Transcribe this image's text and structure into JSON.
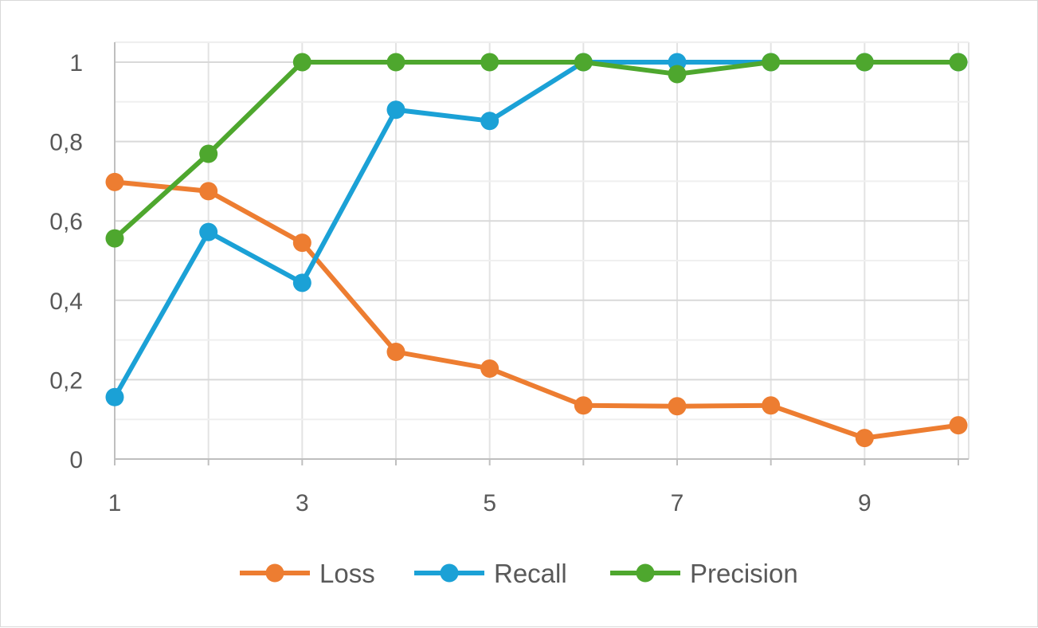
{
  "chart_data": {
    "type": "line",
    "title": "",
    "xlabel": "",
    "ylabel": "",
    "x": [
      1,
      2,
      3,
      4,
      5,
      6,
      7,
      8,
      9,
      10
    ],
    "x_tick_labels": [
      "1",
      "3",
      "5",
      "7",
      "9"
    ],
    "y_tick_labels": [
      "0",
      "0,2",
      "0,4",
      "0,6",
      "0,8",
      "1"
    ],
    "xlim": [
      1,
      10
    ],
    "ylim": [
      0,
      1
    ],
    "grid": true,
    "legend_position": "bottom",
    "series": [
      {
        "name": "Loss",
        "color": "#ED7D31",
        "values": [
          0.698,
          0.675,
          0.545,
          0.27,
          0.228,
          0.135,
          0.133,
          0.135,
          0.053,
          0.085
        ]
      },
      {
        "name": "Recall",
        "color": "#1BA1D6",
        "values": [
          0.156,
          0.572,
          0.444,
          0.88,
          0.852,
          1.0,
          1.0,
          1.0,
          1.0,
          1.0
        ]
      },
      {
        "name": "Precision",
        "color": "#4EA72E",
        "values": [
          0.556,
          0.769,
          1.0,
          1.0,
          1.0,
          1.0,
          0.97,
          1.0,
          1.0,
          1.0
        ]
      }
    ]
  }
}
